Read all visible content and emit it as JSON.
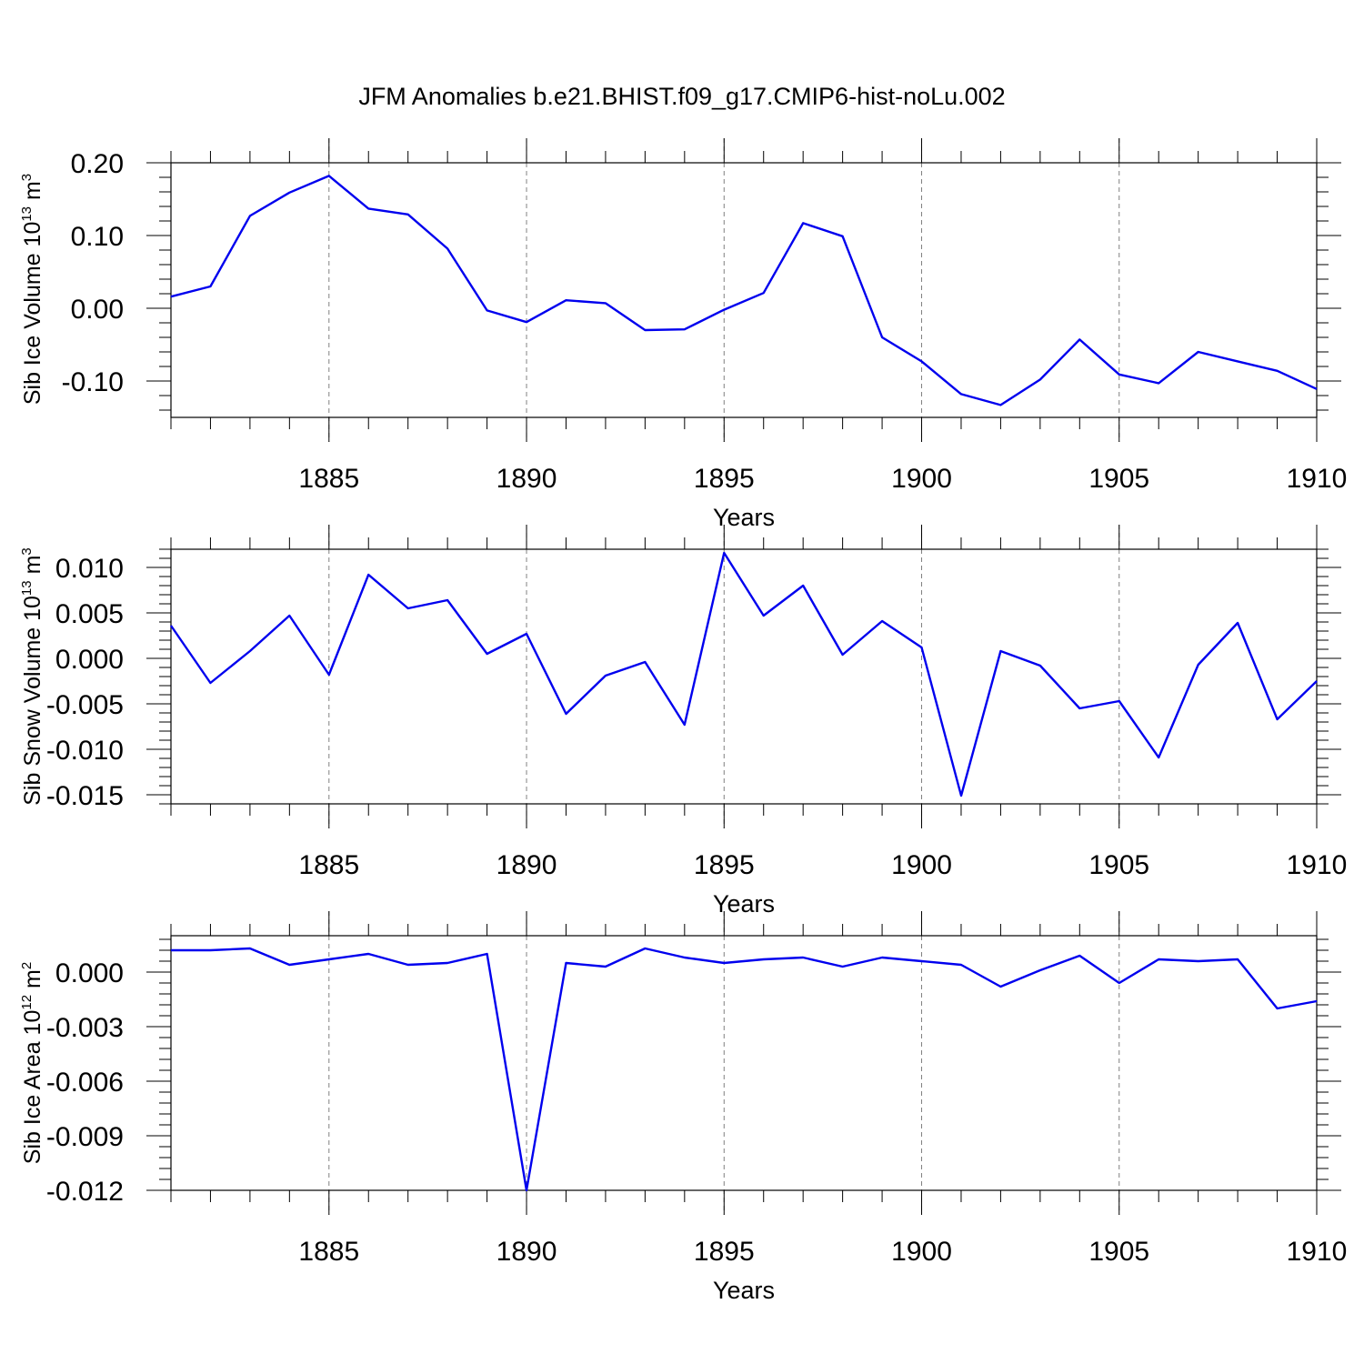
{
  "title": "JFM Anomalies b.e21.BHIST.f09_g17.CMIP6-hist-noLu.002",
  "colors": {
    "line": "#0000ee",
    "grid": "#808080",
    "axis": "#000000"
  },
  "chart_data": [
    {
      "type": "line",
      "ylabel": "Sib Ice Volume 10",
      "ylabel_exp": "13",
      "ylabel_unit": " m",
      "ylabel_unit_exp": "3",
      "xlabel": "Years",
      "xlim": [
        1881,
        1910
      ],
      "ylim": [
        -0.15,
        0.2
      ],
      "yticks": [
        0.2,
        0.1,
        0.0,
        -0.1
      ],
      "ytick_labels": [
        "0.20",
        "0.10",
        "0.00",
        "-0.10"
      ],
      "xticks": [
        1885,
        1890,
        1895,
        1900,
        1905,
        1910
      ],
      "xtick_labels": [
        "1885",
        "1890",
        "1895",
        "1900",
        "1905",
        "1910"
      ],
      "grid_x": [
        1885,
        1890,
        1895,
        1900,
        1905
      ],
      "x": [
        1881,
        1882,
        1883,
        1884,
        1885,
        1886,
        1887,
        1888,
        1889,
        1890,
        1891,
        1892,
        1893,
        1894,
        1895,
        1896,
        1897,
        1898,
        1899,
        1900,
        1901,
        1902,
        1903,
        1904,
        1905,
        1906,
        1907,
        1908,
        1909,
        1910
      ],
      "series": [
        {
          "name": "Sib Ice Volume",
          "values": [
            0.016,
            0.03,
            0.127,
            0.159,
            0.182,
            0.137,
            0.129,
            0.082,
            -0.003,
            -0.019,
            0.011,
            0.007,
            -0.03,
            -0.029,
            -0.002,
            0.021,
            0.117,
            0.099,
            -0.04,
            -0.073,
            -0.118,
            -0.133,
            -0.098,
            -0.043,
            -0.091,
            -0.103,
            -0.06,
            -0.073,
            -0.086,
            -0.111
          ]
        }
      ]
    },
    {
      "type": "line",
      "ylabel": "Sib Snow Volume 10",
      "ylabel_exp": "13",
      "ylabel_unit": " m",
      "ylabel_unit_exp": "3",
      "xlabel": "Years",
      "xlim": [
        1881,
        1910
      ],
      "ylim": [
        -0.016,
        0.012
      ],
      "yticks": [
        0.01,
        0.005,
        0.0,
        -0.005,
        -0.01,
        -0.015
      ],
      "ytick_labels": [
        "0.010",
        "0.005",
        "0.000",
        "-0.005",
        "-0.010",
        "-0.015"
      ],
      "xticks": [
        1885,
        1890,
        1895,
        1900,
        1905,
        1910
      ],
      "xtick_labels": [
        "1885",
        "1890",
        "1895",
        "1900",
        "1905",
        "1910"
      ],
      "grid_x": [
        1885,
        1890,
        1895,
        1900,
        1905
      ],
      "x": [
        1881,
        1882,
        1883,
        1884,
        1885,
        1886,
        1887,
        1888,
        1889,
        1890,
        1891,
        1892,
        1893,
        1894,
        1895,
        1896,
        1897,
        1898,
        1899,
        1900,
        1901,
        1902,
        1903,
        1904,
        1905,
        1906,
        1907,
        1908,
        1909,
        1910
      ],
      "series": [
        {
          "name": "Sib Snow Volume",
          "values": [
            0.0036,
            -0.0027,
            0.0008,
            0.0047,
            -0.0018,
            0.0092,
            0.0055,
            0.0064,
            0.0005,
            0.0027,
            -0.0061,
            -0.0019,
            -0.0004,
            -0.0073,
            0.0116,
            0.0047,
            0.008,
            0.0004,
            0.0041,
            0.0012,
            -0.0151,
            0.0008,
            -0.0008,
            -0.0055,
            -0.0047,
            -0.0109,
            -0.0007,
            0.0039,
            -0.0067,
            -0.0025
          ]
        }
      ]
    },
    {
      "type": "line",
      "ylabel": "Sib Ice Area 10",
      "ylabel_exp": "12",
      "ylabel_unit": " m",
      "ylabel_unit_exp": "2",
      "xlabel": "Years",
      "xlim": [
        1881,
        1910
      ],
      "ylim": [
        -0.012,
        0.002
      ],
      "yticks": [
        0.0,
        -0.003,
        -0.006,
        -0.009,
        -0.012
      ],
      "ytick_labels": [
        "0.000",
        "-0.003",
        "-0.006",
        "-0.009",
        "-0.012"
      ],
      "xticks": [
        1885,
        1890,
        1895,
        1900,
        1905,
        1910
      ],
      "xtick_labels": [
        "1885",
        "1890",
        "1895",
        "1900",
        "1905",
        "1910"
      ],
      "grid_x": [
        1885,
        1890,
        1895,
        1900,
        1905
      ],
      "x": [
        1881,
        1882,
        1883,
        1884,
        1885,
        1886,
        1887,
        1888,
        1889,
        1890,
        1891,
        1892,
        1893,
        1894,
        1895,
        1896,
        1897,
        1898,
        1899,
        1900,
        1901,
        1902,
        1903,
        1904,
        1905,
        1906,
        1907,
        1908,
        1909,
        1910
      ],
      "series": [
        {
          "name": "Sib Ice Area",
          "values": [
            0.0012,
            0.0012,
            0.0013,
            0.0004,
            0.0007,
            0.001,
            0.0004,
            0.0005,
            0.001,
            -0.012,
            0.0005,
            0.0003,
            0.0013,
            0.0008,
            0.0005,
            0.0007,
            0.0008,
            0.0003,
            0.0008,
            0.0006,
            0.0004,
            -0.0008,
            0.0001,
            0.0009,
            -0.0006,
            0.0007,
            0.0006,
            0.0007,
            -0.002,
            -0.0016
          ]
        }
      ]
    }
  ]
}
